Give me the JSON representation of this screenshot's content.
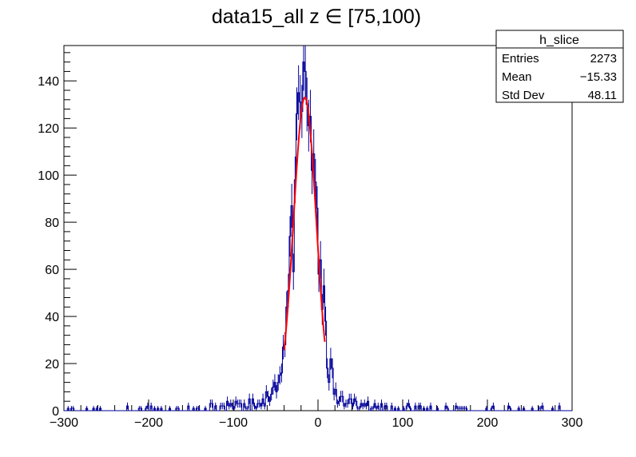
{
  "chart_data": {
    "type": "histogram",
    "title": "data15_all z  ∈ [75,100)",
    "xlabel": "",
    "ylabel": "",
    "xlim": [
      -300,
      300
    ],
    "ylim": [
      0,
      155
    ],
    "x_ticks": [
      -300,
      -200,
      -100,
      0,
      100,
      200,
      300
    ],
    "x_tick_labels": [
      "−300",
      "−200",
      "−100",
      "0",
      "100",
      "200",
      "300"
    ],
    "y_ticks": [
      0,
      20,
      40,
      60,
      80,
      100,
      120,
      140
    ],
    "y_tick_labels": [
      "0",
      "20",
      "40",
      "60",
      "80",
      "100",
      "120",
      "140"
    ],
    "grid": false,
    "histogram": {
      "bin_range": [
        -300,
        300
      ],
      "bin_width": 2,
      "color": "#000099",
      "error_bars": true,
      "entries": 2273,
      "mean": -15.33,
      "std_dev": 48.11
    },
    "fit": {
      "type": "gaussian",
      "color": "#ff0000",
      "constant": 133,
      "mean": -15.5,
      "sigma": 13.5,
      "range": [
        -40,
        8
      ]
    },
    "stats_box": {
      "title": "h_slice",
      "placement": "top-right",
      "rows": [
        {
          "label": "Entries",
          "value": "2273"
        },
        {
          "label": "Mean",
          "value": "−15.33"
        },
        {
          "label": "Std Dev",
          "value": "48.11"
        }
      ]
    }
  }
}
